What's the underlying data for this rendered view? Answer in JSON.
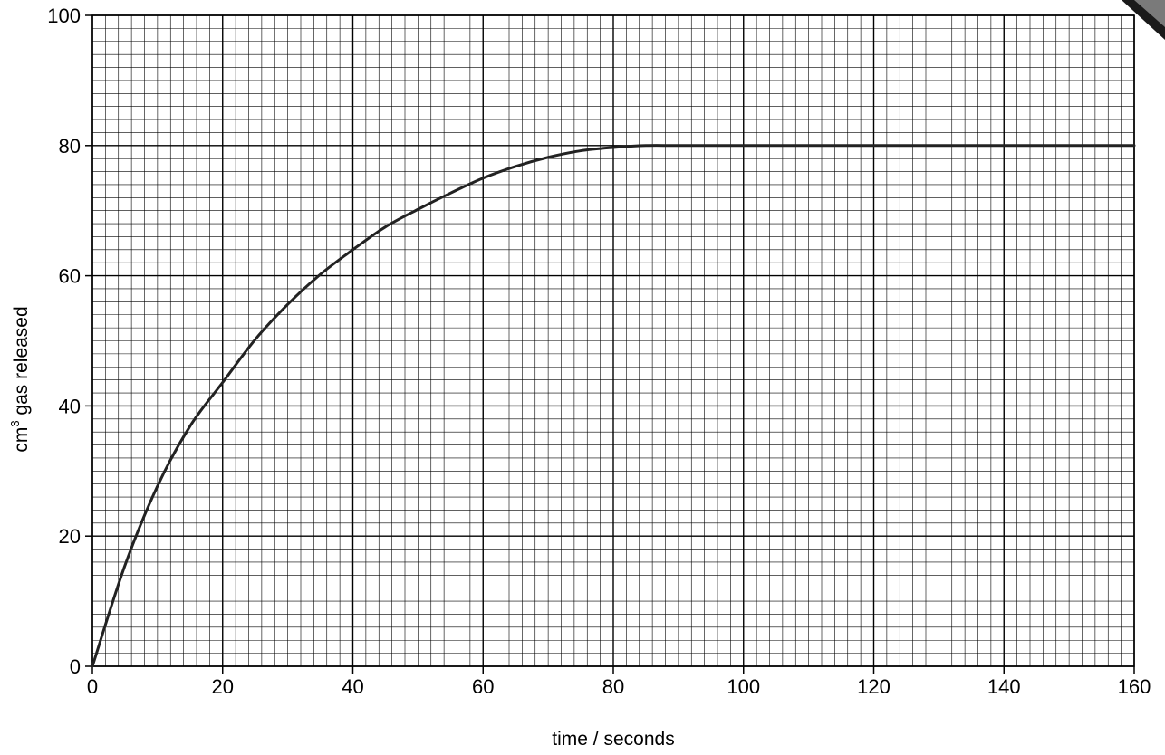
{
  "chart_data": {
    "type": "line",
    "xlabel": "time / seconds",
    "ylabel": {
      "base": "cm",
      "superscript": "3",
      "rest": " gas released"
    },
    "xlim": [
      0,
      160
    ],
    "ylim": [
      0,
      100
    ],
    "x_ticks": [
      0,
      20,
      40,
      60,
      80,
      100,
      120,
      140,
      160
    ],
    "y_ticks": [
      0,
      20,
      40,
      60,
      80,
      100
    ],
    "x_tick_labels": [
      "0",
      "20",
      "40",
      "60",
      "80",
      "100",
      "120",
      "140",
      "160"
    ],
    "y_tick_labels": [
      "0",
      "20",
      "40",
      "60",
      "80",
      "100"
    ],
    "grid": true,
    "minor_grid_per_major": 10,
    "series": [
      {
        "x": [
          0,
          5,
          10,
          15,
          20,
          25,
          30,
          35,
          40,
          45,
          50,
          55,
          60,
          65,
          70,
          75,
          80,
          85,
          90,
          100,
          110,
          120,
          130,
          140,
          150,
          160
        ],
        "y": [
          0,
          15.5,
          27.7,
          36.9,
          43.6,
          50.2,
          55.6,
          60.2,
          64.0,
          67.5,
          70.2,
          72.7,
          75.0,
          76.8,
          78.2,
          79.2,
          79.7,
          80.0,
          80.0,
          80.0,
          80.0,
          80.0,
          80.0,
          80.0,
          80.0,
          80.0
        ]
      }
    ]
  }
}
